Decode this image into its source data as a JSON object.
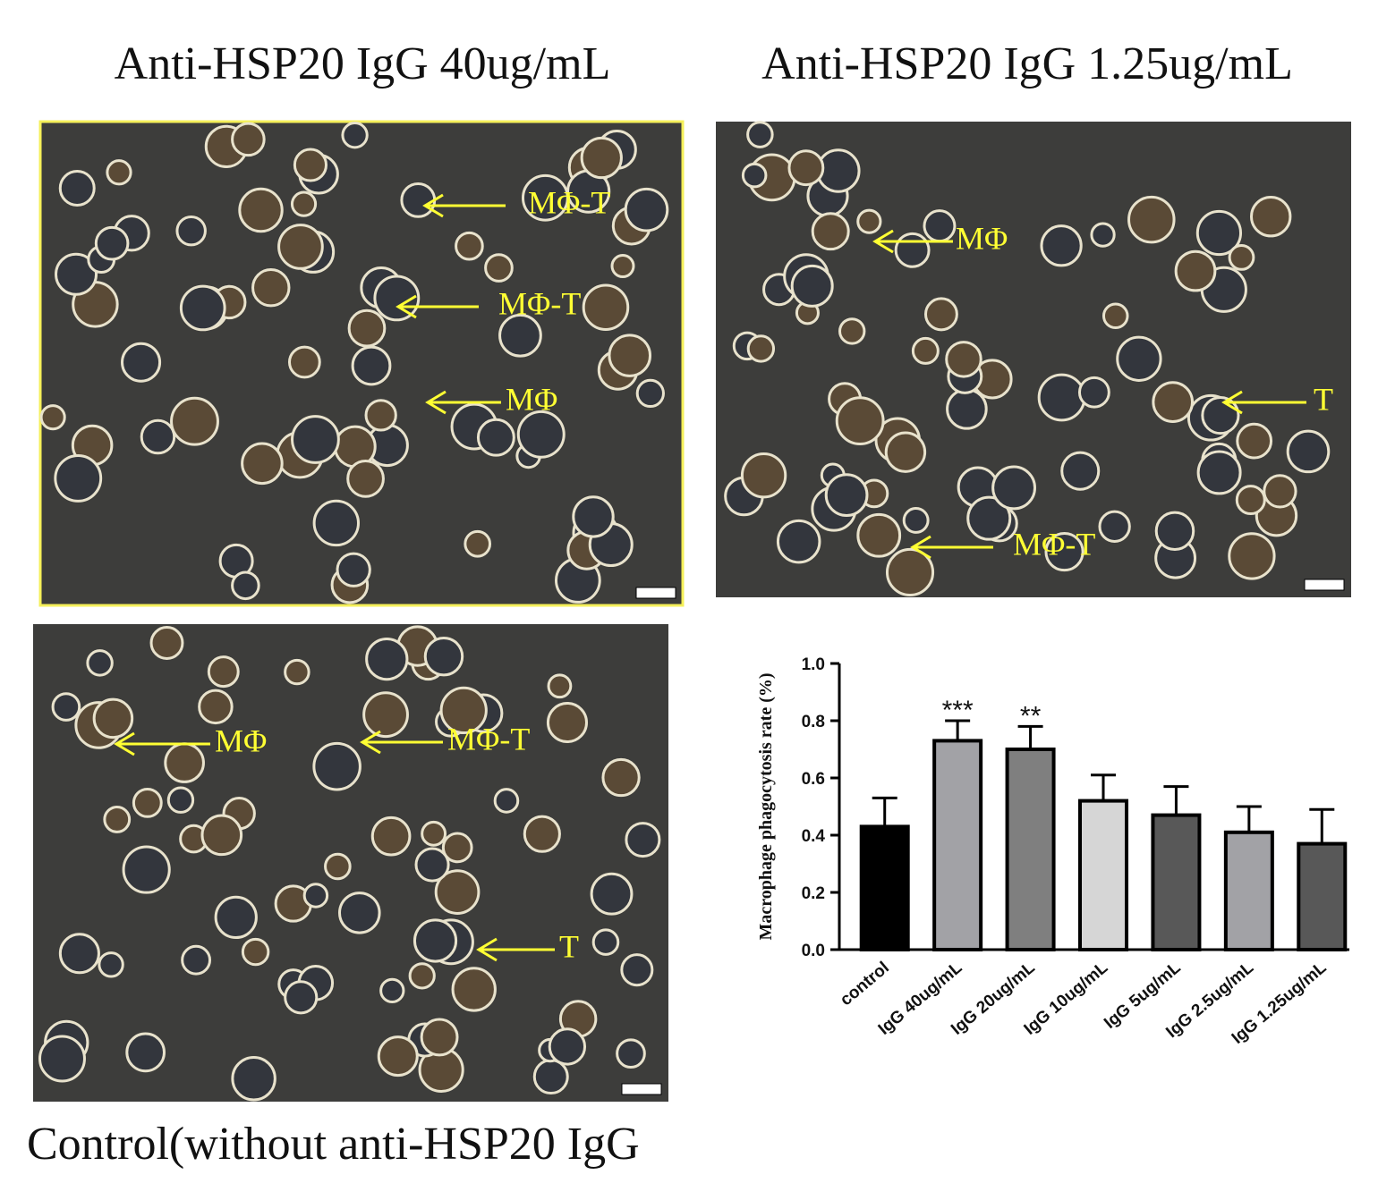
{
  "panels": [
    {
      "title": "Anti-HSP20 IgG 40ug/mL",
      "annotations": [
        "MΦ-T",
        "MΦ-T",
        "MΦ"
      ]
    },
    {
      "title": "Anti-HSP20 IgG 1.25ug/mL",
      "annotations": [
        "MΦ",
        "T",
        "MΦ-T"
      ]
    },
    {
      "title": "Control(without anti-HSP20 IgG",
      "annotations": [
        "MΦ",
        "MΦ-T",
        "T"
      ]
    }
  ],
  "chart_data": {
    "type": "bar",
    "y_label": "Macrophage phagocytosis rate (%)",
    "categories": [
      "control",
      "IgG 40ug/mL",
      "IgG 20ug/mL",
      "IgG 10ug/mL",
      "IgG 5ug/mL",
      "IgG 2.5ug/mL",
      "IgG 1.25ug/mL"
    ],
    "values": [
      0.43,
      0.73,
      0.7,
      0.52,
      0.47,
      0.41,
      0.37
    ],
    "errors": [
      0.1,
      0.07,
      0.08,
      0.09,
      0.1,
      0.09,
      0.12
    ],
    "colors": [
      "#000000",
      "#a2a2a6",
      "#7f7f7f",
      "#d6d6d6",
      "#585858",
      "#a2a2a6",
      "#585858"
    ],
    "significance": [
      null,
      "***",
      "**",
      null,
      null,
      null,
      null
    ],
    "ylim": [
      0,
      1
    ],
    "yticks": [
      {
        "value": 0,
        "label": "0.0"
      },
      0.2,
      0.4,
      0.6,
      0.8,
      {
        "value": 1,
        "label": "1.0"
      }
    ]
  }
}
